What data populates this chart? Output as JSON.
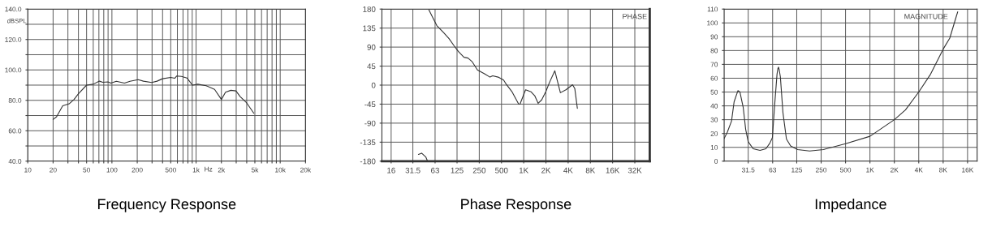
{
  "chart_data": [
    {
      "type": "line",
      "title": "Frequency Response",
      "ylabel": "dBSPL",
      "log": "x",
      "grid": true,
      "marker": "none",
      "line_style": "solid",
      "annotations": [
        "Hz"
      ],
      "xlim": [
        10,
        20000
      ],
      "xticks": [
        10,
        20,
        {
          "value": 30,
          "label": null
        },
        {
          "value": 40,
          "label": null
        },
        50,
        {
          "value": 60,
          "label": null
        },
        {
          "value": 70,
          "label": null
        },
        {
          "value": 80,
          "label": null
        },
        {
          "value": 90,
          "label": null
        },
        100,
        200,
        {
          "value": 300,
          "label": null
        },
        {
          "value": 400,
          "label": null
        },
        500,
        {
          "value": 600,
          "label": null
        },
        {
          "value": 700,
          "label": null
        },
        {
          "value": 800,
          "label": null
        },
        {
          "value": 900,
          "label": null
        },
        {
          "value": 1000,
          "label": "1k"
        },
        {
          "value": 2000,
          "label": "2k"
        },
        {
          "value": 3000,
          "label": null
        },
        {
          "value": 4000,
          "label": null
        },
        {
          "value": 5000,
          "label": "5k"
        },
        {
          "value": 6000,
          "label": null
        },
        {
          "value": 7000,
          "label": null
        },
        {
          "value": 8000,
          "label": null
        },
        {
          "value": 9000,
          "label": null
        },
        {
          "value": 10000,
          "label": "10k"
        },
        {
          "value": 20000,
          "label": "20k"
        }
      ],
      "ylim": [
        40,
        140
      ],
      "yticks": [
        {
          "value": 40,
          "label": "40.0"
        },
        {
          "value": 50,
          "label": null
        },
        {
          "value": 60,
          "label": "60.0"
        },
        {
          "value": 70,
          "label": null
        },
        {
          "value": 80,
          "label": "80.0"
        },
        {
          "value": 90,
          "label": null
        },
        {
          "value": 100,
          "label": "100.0"
        },
        {
          "value": 110,
          "label": null
        },
        {
          "value": 120,
          "label": "120.0"
        },
        {
          "value": 130,
          "label": null
        },
        {
          "value": 140,
          "label": "140.0"
        }
      ],
      "series": [
        {
          "color": "#333333",
          "x": [
            20,
            22,
            26,
            31,
            35.5,
            40,
            50,
            60,
            71,
            78,
            90,
            97,
            113,
            141,
            164,
            205,
            237,
            297,
            344,
            399,
            500,
            558,
            590,
            670,
            780,
            906,
            1050,
            1320,
            1660,
            2000,
            2240,
            2590,
            2980,
            3340,
            4000,
            4860
          ],
          "values": [
            67.4,
            69.2,
            76.4,
            77.7,
            80.6,
            84.3,
            90,
            90.6,
            92.6,
            91.9,
            92.1,
            91.3,
            92.5,
            91.3,
            92.5,
            93.6,
            92.6,
            91.7,
            92.6,
            94.2,
            95.1,
            94.5,
            96,
            95.7,
            94.7,
            90,
            90.6,
            89.6,
            87.2,
            80.6,
            85.3,
            86.6,
            86.2,
            82.5,
            78.3,
            71.5
          ]
        }
      ]
    },
    {
      "type": "line",
      "title": "Phase Response",
      "log": "x",
      "grid": true,
      "marker": "none",
      "line_style": "solid",
      "annotations": [
        "PHASE"
      ],
      "xlim": [
        12,
        51000
      ],
      "xticks": [
        16,
        31.5,
        63,
        125,
        250,
        500,
        {
          "value": 1000,
          "label": "1K"
        },
        {
          "value": 2000,
          "label": "2K"
        },
        {
          "value": 4000,
          "label": "4K"
        },
        {
          "value": 8000,
          "label": "8K"
        },
        {
          "value": 16000,
          "label": "16K"
        },
        {
          "value": 32000,
          "label": "32K"
        }
      ],
      "ylim": [
        -180,
        180
      ],
      "yticks": [
        -180,
        -135,
        -90,
        -45,
        0,
        45,
        90,
        135,
        180
      ],
      "series": [
        {
          "color": "#333333",
          "x": [
            37.5,
            41.4,
            47.1,
            49.3
          ],
          "values": [
            -164,
            -161,
            -170,
            -178
          ]
        },
        {
          "color": "#333333",
          "x": [
            52,
            58.1,
            66.5,
            82.5,
            97.3,
            114,
            130,
            155,
            176,
            199,
            236,
            294,
            349,
            380,
            450,
            534,
            580,
            690,
            856,
            890,
            1060,
            1260,
            1410,
            1570,
            1750,
            2000,
            2230,
            2640,
            3140,
            3730,
            4590,
            4920,
            5330
          ],
          "values": [
            178,
            161,
            141,
            124,
            110,
            93,
            80,
            66,
            64,
            56,
            36,
            27,
            19,
            22,
            19,
            12,
            2,
            -15,
            -45,
            -45,
            -11,
            -16,
            -25,
            -43,
            -35,
            -15,
            6,
            34,
            -18,
            -11,
            1,
            -8,
            -55
          ]
        }
      ]
    },
    {
      "type": "line",
      "title": "Impedance",
      "log": "x",
      "grid": true,
      "marker": "none",
      "line_style": "solid",
      "annotations": [
        "MAGNITUDE"
      ],
      "xlim": [
        15.9,
        21000
      ],
      "xticks": [
        31.5,
        63,
        125,
        250,
        500,
        {
          "value": 1000,
          "label": "1K"
        },
        {
          "value": 2000,
          "label": "2K"
        },
        {
          "value": 4000,
          "label": "4K"
        },
        {
          "value": 8000,
          "label": "8K"
        },
        {
          "value": 16000,
          "label": "16K"
        }
      ],
      "ylim": [
        0,
        110
      ],
      "yticks": [
        0,
        10,
        20,
        30,
        40,
        50,
        60,
        70,
        80,
        90,
        100,
        110
      ],
      "series": [
        {
          "color": "#333333",
          "x": [
            15.9,
            17.4,
            19.6,
            21.1,
            23.5,
            24.9,
            27.3,
            29.3,
            31.5,
            36.3,
            44,
            52,
            58.2,
            62.6,
            66.8,
            71.4,
            73.2,
            74.5,
            76,
            78.5,
            84.5,
            93.3,
            105,
            128,
            180,
            267,
            501,
            1000,
            2000,
            2740,
            4000,
            5610,
            8000,
            9660,
            11660,
            12100
          ],
          "values": [
            16.4,
            21,
            29,
            43,
            51,
            50,
            39,
            23,
            14,
            9,
            7.8,
            9,
            13,
            17,
            41,
            63,
            67,
            68,
            66,
            61,
            35,
            16,
            11,
            8.4,
            7.4,
            8.4,
            12.6,
            18,
            30,
            37,
            50,
            63,
            81,
            89,
            105,
            108
          ]
        }
      ]
    }
  ]
}
